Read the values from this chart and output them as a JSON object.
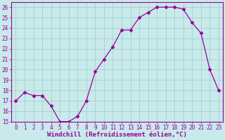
{
  "x": [
    0,
    1,
    2,
    3,
    4,
    5,
    6,
    7,
    8,
    9,
    10,
    11,
    12,
    13,
    14,
    15,
    16,
    17,
    18,
    19,
    20,
    21,
    22,
    23
  ],
  "y": [
    17.0,
    17.8,
    17.5,
    17.5,
    16.5,
    15.0,
    15.0,
    15.5,
    17.0,
    19.8,
    21.0,
    22.2,
    23.8,
    23.8,
    25.0,
    25.5,
    26.0,
    26.0,
    26.0,
    25.8,
    24.5,
    23.5,
    20.0,
    18.0
  ],
  "line_color": "#990099",
  "marker": "D",
  "marker_size": 2.5,
  "bg_color": "#c8eaea",
  "grid_color": "#a8cece",
  "xlabel": "Windchill (Refroidissement éolien,°C)",
  "xlabel_color": "#990099",
  "tick_color": "#990099",
  "spine_color": "#990099",
  "ylim": [
    15,
    26.5
  ],
  "xlim": [
    -0.5,
    23.5
  ],
  "yticks": [
    15,
    16,
    17,
    18,
    19,
    20,
    21,
    22,
    23,
    24,
    25,
    26
  ],
  "xticks": [
    0,
    1,
    2,
    3,
    4,
    5,
    6,
    7,
    8,
    9,
    10,
    11,
    12,
    13,
    14,
    15,
    16,
    17,
    18,
    19,
    20,
    21,
    22,
    23
  ],
  "xtick_labels": [
    "0",
    "1",
    "2",
    "3",
    "4",
    "5",
    "6",
    "7",
    "8",
    "9",
    "10",
    "11",
    "12",
    "13",
    "14",
    "15",
    "16",
    "17",
    "18",
    "19",
    "20",
    "21",
    "22",
    "23"
  ],
  "tick_fontsize": 5.5,
  "xlabel_fontsize": 6.5
}
